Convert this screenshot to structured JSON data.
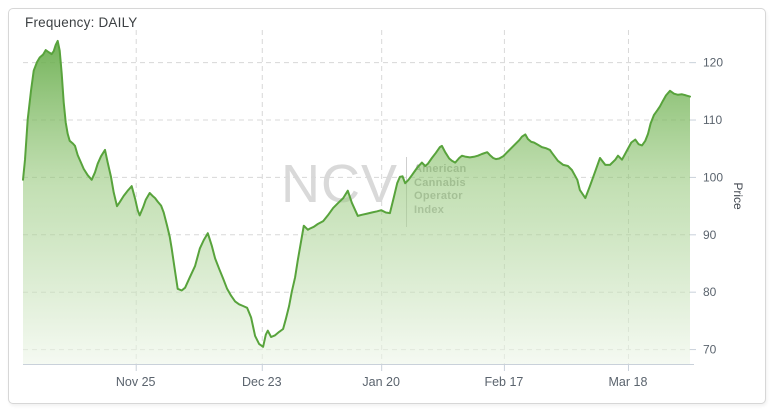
{
  "header": {
    "frequency": "Frequency: DAILY"
  },
  "watermark": {
    "logo": "NCV",
    "lines": [
      "American",
      "Cannabis",
      "Operator Index"
    ]
  },
  "colors": {
    "line": "#58a33c",
    "fill_top": "rgba(104,173,76,0.92)",
    "fill_mid": "rgba(146,198,118,0.55)",
    "fill_bottom": "rgba(238,246,233,0.6)",
    "grid": "#d8d8d8",
    "axis": "#c9d1da",
    "border": "#d7d7d7"
  },
  "chart_data": {
    "type": "area",
    "title": "",
    "series_name": "American Cannabis Operator Index",
    "frequency": "DAILY",
    "xlabel": "",
    "ylabel": "Price",
    "ylim": [
      67.4,
      125.6
    ],
    "y_ticks": [
      70,
      80,
      90,
      100,
      110,
      120
    ],
    "x_ticks": [
      {
        "label": "Nov 25",
        "pos": 0.169
      },
      {
        "label": "Dec 23",
        "pos": 0.358
      },
      {
        "label": "Jan 20",
        "pos": 0.537
      },
      {
        "label": "Feb 17",
        "pos": 0.721
      },
      {
        "label": "Mar 18",
        "pos": 0.907
      }
    ],
    "grid": "dashed",
    "legend_position": "none",
    "points": [
      [
        0.0,
        99.5
      ],
      [
        0.003,
        103.0
      ],
      [
        0.007,
        110.0
      ],
      [
        0.012,
        115.0
      ],
      [
        0.016,
        118.5
      ],
      [
        0.021,
        120.0
      ],
      [
        0.025,
        120.8
      ],
      [
        0.03,
        121.3
      ],
      [
        0.034,
        122.1
      ],
      [
        0.039,
        121.7
      ],
      [
        0.043,
        121.4
      ],
      [
        0.046,
        121.9
      ],
      [
        0.049,
        123.0
      ],
      [
        0.052,
        123.7
      ],
      [
        0.055,
        122.0
      ],
      [
        0.058,
        118.0
      ],
      [
        0.061,
        113.0
      ],
      [
        0.064,
        109.5
      ],
      [
        0.067,
        107.5
      ],
      [
        0.07,
        106.3
      ],
      [
        0.075,
        105.8
      ],
      [
        0.078,
        105.4
      ],
      [
        0.082,
        103.8
      ],
      [
        0.087,
        102.5
      ],
      [
        0.091,
        101.4
      ],
      [
        0.097,
        100.3
      ],
      [
        0.103,
        99.5
      ],
      [
        0.108,
        100.8
      ],
      [
        0.112,
        102.3
      ],
      [
        0.117,
        103.6
      ],
      [
        0.123,
        104.7
      ],
      [
        0.127,
        102.5
      ],
      [
        0.132,
        100.0
      ],
      [
        0.136,
        97.3
      ],
      [
        0.141,
        94.9
      ],
      [
        0.145,
        95.6
      ],
      [
        0.151,
        96.7
      ],
      [
        0.157,
        97.6
      ],
      [
        0.163,
        98.4
      ],
      [
        0.168,
        96.2
      ],
      [
        0.172,
        94.2
      ],
      [
        0.175,
        93.3
      ],
      [
        0.18,
        94.7
      ],
      [
        0.184,
        96.0
      ],
      [
        0.19,
        97.2
      ],
      [
        0.195,
        96.6
      ],
      [
        0.198,
        96.3
      ],
      [
        0.202,
        95.7
      ],
      [
        0.207,
        95.0
      ],
      [
        0.211,
        93.8
      ],
      [
        0.216,
        91.5
      ],
      [
        0.22,
        89.6
      ],
      [
        0.223,
        87.5
      ],
      [
        0.228,
        83.5
      ],
      [
        0.232,
        80.5
      ],
      [
        0.238,
        80.2
      ],
      [
        0.243,
        80.7
      ],
      [
        0.25,
        82.5
      ],
      [
        0.258,
        84.5
      ],
      [
        0.265,
        87.5
      ],
      [
        0.271,
        89.0
      ],
      [
        0.277,
        90.2
      ],
      [
        0.283,
        88.0
      ],
      [
        0.288,
        85.8
      ],
      [
        0.294,
        84.0
      ],
      [
        0.3,
        82.3
      ],
      [
        0.306,
        80.5
      ],
      [
        0.312,
        79.3
      ],
      [
        0.318,
        78.3
      ],
      [
        0.324,
        77.8
      ],
      [
        0.33,
        77.5
      ],
      [
        0.336,
        77.2
      ],
      [
        0.342,
        75.5
      ],
      [
        0.348,
        72.3
      ],
      [
        0.354,
        70.9
      ],
      [
        0.36,
        70.4
      ],
      [
        0.364,
        72.5
      ],
      [
        0.367,
        73.2
      ],
      [
        0.372,
        72.1
      ],
      [
        0.378,
        72.4
      ],
      [
        0.384,
        73.0
      ],
      [
        0.39,
        73.5
      ],
      [
        0.394,
        75.2
      ],
      [
        0.399,
        77.5
      ],
      [
        0.403,
        80.0
      ],
      [
        0.408,
        82.5
      ],
      [
        0.412,
        85.5
      ],
      [
        0.418,
        89.5
      ],
      [
        0.421,
        91.5
      ],
      [
        0.427,
        90.8
      ],
      [
        0.43,
        91.0
      ],
      [
        0.436,
        91.3
      ],
      [
        0.442,
        91.8
      ],
      [
        0.45,
        92.3
      ],
      [
        0.457,
        93.3
      ],
      [
        0.465,
        94.6
      ],
      [
        0.472,
        95.4
      ],
      [
        0.48,
        96.3
      ],
      [
        0.487,
        97.6
      ],
      [
        0.493,
        95.5
      ],
      [
        0.502,
        93.2
      ],
      [
        0.508,
        93.4
      ],
      [
        0.516,
        93.6
      ],
      [
        0.523,
        93.8
      ],
      [
        0.531,
        94.0
      ],
      [
        0.537,
        94.2
      ],
      [
        0.544,
        93.8
      ],
      [
        0.55,
        93.7
      ],
      [
        0.556,
        96.5
      ],
      [
        0.561,
        98.9
      ],
      [
        0.565,
        100.0
      ],
      [
        0.569,
        100.1
      ],
      [
        0.573,
        98.9
      ],
      [
        0.578,
        99.5
      ],
      [
        0.583,
        100.3
      ],
      [
        0.589,
        101.3
      ],
      [
        0.594,
        102.0
      ],
      [
        0.598,
        102.5
      ],
      [
        0.603,
        101.9
      ],
      [
        0.607,
        102.3
      ],
      [
        0.613,
        103.3
      ],
      [
        0.619,
        104.2
      ],
      [
        0.625,
        105.2
      ],
      [
        0.628,
        105.4
      ],
      [
        0.633,
        104.3
      ],
      [
        0.639,
        103.2
      ],
      [
        0.643,
        102.8
      ],
      [
        0.648,
        102.5
      ],
      [
        0.654,
        103.3
      ],
      [
        0.658,
        103.7
      ],
      [
        0.664,
        103.5
      ],
      [
        0.67,
        103.4
      ],
      [
        0.676,
        103.5
      ],
      [
        0.682,
        103.7
      ],
      [
        0.688,
        104.0
      ],
      [
        0.696,
        104.3
      ],
      [
        0.7,
        103.8
      ],
      [
        0.705,
        103.3
      ],
      [
        0.709,
        103.1
      ],
      [
        0.714,
        103.2
      ],
      [
        0.72,
        103.6
      ],
      [
        0.726,
        104.3
      ],
      [
        0.732,
        105.0
      ],
      [
        0.738,
        105.7
      ],
      [
        0.744,
        106.4
      ],
      [
        0.748,
        107.0
      ],
      [
        0.753,
        107.4
      ],
      [
        0.757,
        106.6
      ],
      [
        0.762,
        106.1
      ],
      [
        0.766,
        106.0
      ],
      [
        0.772,
        105.6
      ],
      [
        0.778,
        105.2
      ],
      [
        0.784,
        105.0
      ],
      [
        0.79,
        104.7
      ],
      [
        0.793,
        104.2
      ],
      [
        0.802,
        102.8
      ],
      [
        0.81,
        102.1
      ],
      [
        0.817,
        101.9
      ],
      [
        0.823,
        101.2
      ],
      [
        0.831,
        99.5
      ],
      [
        0.835,
        97.7
      ],
      [
        0.843,
        96.3
      ],
      [
        0.85,
        98.4
      ],
      [
        0.858,
        101.0
      ],
      [
        0.865,
        103.3
      ],
      [
        0.873,
        102.1
      ],
      [
        0.88,
        102.1
      ],
      [
        0.888,
        103.0
      ],
      [
        0.892,
        103.7
      ],
      [
        0.898,
        103.0
      ],
      [
        0.906,
        104.7
      ],
      [
        0.912,
        106.0
      ],
      [
        0.918,
        106.5
      ],
      [
        0.923,
        105.7
      ],
      [
        0.928,
        105.5
      ],
      [
        0.933,
        106.3
      ],
      [
        0.937,
        107.5
      ],
      [
        0.941,
        109.3
      ],
      [
        0.946,
        110.8
      ],
      [
        0.951,
        111.6
      ],
      [
        0.955,
        112.3
      ],
      [
        0.959,
        113.2
      ],
      [
        0.964,
        114.2
      ],
      [
        0.97,
        115.0
      ],
      [
        0.976,
        114.5
      ],
      [
        0.982,
        114.3
      ],
      [
        0.988,
        114.4
      ],
      [
        0.994,
        114.2
      ],
      [
        1.0,
        114.0
      ]
    ]
  }
}
